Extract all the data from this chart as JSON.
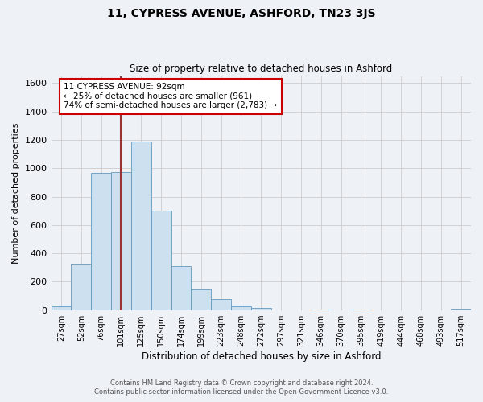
{
  "title": "11, CYPRESS AVENUE, ASHFORD, TN23 3JS",
  "subtitle": "Size of property relative to detached houses in Ashford",
  "xlabel": "Distribution of detached houses by size in Ashford",
  "ylabel": "Number of detached properties",
  "footer_line1": "Contains HM Land Registry data © Crown copyright and database right 2024.",
  "footer_line2": "Contains public sector information licensed under the Open Government Licence v3.0.",
  "bin_labels": [
    "27sqm",
    "52sqm",
    "76sqm",
    "101sqm",
    "125sqm",
    "150sqm",
    "174sqm",
    "199sqm",
    "223sqm",
    "248sqm",
    "272sqm",
    "297sqm",
    "321sqm",
    "346sqm",
    "370sqm",
    "395sqm",
    "419sqm",
    "444sqm",
    "468sqm",
    "493sqm",
    "517sqm"
  ],
  "bar_values": [
    28,
    325,
    970,
    975,
    1190,
    700,
    310,
    148,
    75,
    28,
    18,
    0,
    0,
    4,
    0,
    4,
    0,
    0,
    0,
    0,
    8
  ],
  "bar_color": "#cce0f0",
  "bar_edge_color": "#6699bb",
  "ylim": [
    0,
    1650
  ],
  "yticks": [
    0,
    200,
    400,
    600,
    800,
    1000,
    1200,
    1400,
    1600
  ],
  "annotation_title": "11 CYPRESS AVENUE: 92sqm",
  "annotation_line1": "← 25% of detached houses are smaller (961)",
  "annotation_line2": "74% of semi-detached houses are larger (2,783) →",
  "vline_color": "#993333",
  "annotation_box_color": "#ffffff",
  "annotation_box_edge": "#cc0000",
  "grid_color": "#cccccc",
  "background_color": "#eef2f7"
}
